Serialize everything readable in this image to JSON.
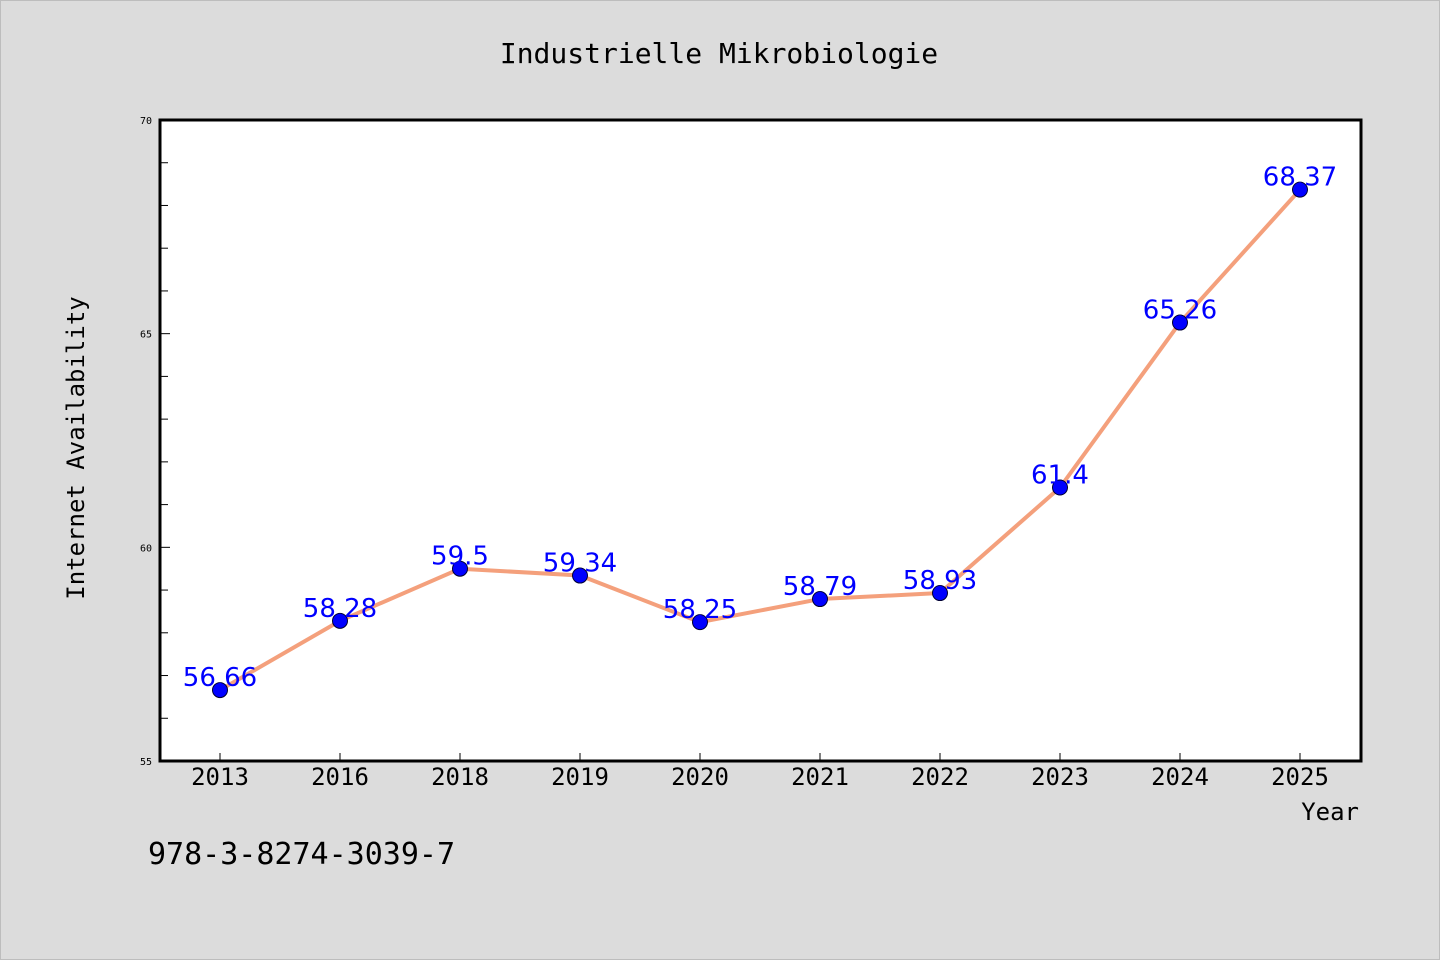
{
  "chart_data": {
    "type": "line",
    "title": "Industrielle Mikrobiologie",
    "xlabel": "Year",
    "ylabel": "Internet Availability",
    "categories": [
      "2013",
      "2016",
      "2018",
      "2019",
      "2020",
      "2021",
      "2022",
      "2023",
      "2024",
      "2025"
    ],
    "series": [
      {
        "values": [
          56.66,
          58.28,
          59.5,
          59.34,
          58.25,
          58.79,
          58.93,
          61.4,
          65.26,
          68.37
        ],
        "labels": [
          "56.66",
          "58.28",
          "59.5",
          "59.34",
          "58.25",
          "58.79",
          "58.93",
          "61.4",
          "65.26",
          "68.37"
        ],
        "line_color": "#f4a07c",
        "marker_color": "#0000ff",
        "label_color": "#0000ff"
      }
    ],
    "ylim": [
      55,
      70
    ],
    "yticks": [
      "55",
      "60",
      "65",
      "70"
    ],
    "grid": false,
    "legend": "none"
  },
  "annotation": {
    "isbn": "978-3-8274-3039-7"
  },
  "colors": {
    "background": "#dcdcdc",
    "plot_background": "#ffffff",
    "axis": "#000000",
    "text": "#000000"
  }
}
